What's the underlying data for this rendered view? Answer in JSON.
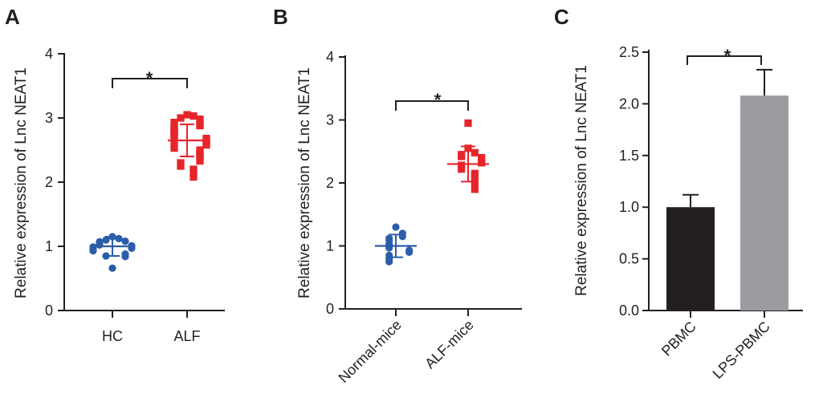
{
  "colors": {
    "blue": "#2a5daa",
    "red": "#e8242b",
    "dark_bar": "#231f20",
    "gray_bar": "#9a9ca1",
    "ink": "#231f20"
  },
  "chart_data": [
    {
      "panel": "A",
      "type": "scatter",
      "ylabel": "Relative expression of Lnc NEAT1",
      "categories": [
        "HC",
        "ALF"
      ],
      "ylim": [
        0,
        4
      ],
      "yticks": [
        "0",
        "1",
        "2",
        "3",
        "4"
      ],
      "significance": "*",
      "series": [
        {
          "name": "HC",
          "color": "blue",
          "marker": "circle",
          "mean": 1.0,
          "sd": 0.15,
          "values": [
            1.15,
            1.12,
            1.1,
            1.08,
            1.07,
            1.04,
            1.02,
            1.01,
            1.0,
            0.99,
            0.97,
            0.95,
            0.93,
            0.88,
            0.85,
            0.84,
            0.66
          ]
        },
        {
          "name": "ALF",
          "color": "red",
          "marker": "square",
          "mean": 2.65,
          "sd": 0.25,
          "values": [
            3.05,
            3.03,
            3.0,
            2.98,
            2.95,
            2.93,
            2.9,
            2.88,
            2.86,
            2.85,
            2.83,
            2.8,
            2.78,
            2.76,
            2.75,
            2.72,
            2.7,
            2.68,
            2.66,
            2.65,
            2.64,
            2.62,
            2.6,
            2.58,
            2.55,
            2.53,
            2.5,
            2.48,
            2.45,
            2.42,
            2.4,
            2.37,
            2.33,
            2.3,
            2.25,
            2.2,
            2.15,
            2.08
          ]
        }
      ]
    },
    {
      "panel": "B",
      "type": "scatter",
      "ylabel": "Relative expression of Lnc NEAT1",
      "categories": [
        "Normal-mice",
        "ALF-mice"
      ],
      "ylim": [
        0,
        4
      ],
      "yticks": [
        "0",
        "1",
        "2",
        "3",
        "4"
      ],
      "significance": "*",
      "series": [
        {
          "name": "Normal-mice",
          "color": "blue",
          "marker": "circle",
          "mean": 1.0,
          "sd": 0.18,
          "values": [
            1.3,
            1.2,
            1.15,
            1.12,
            1.08,
            1.02,
            1.0,
            0.97,
            0.93,
            0.9,
            0.85,
            0.8,
            0.75
          ]
        },
        {
          "name": "ALF-mice",
          "color": "red",
          "marker": "square",
          "mean": 2.3,
          "sd": 0.28,
          "values": [
            2.95,
            2.55,
            2.48,
            2.45,
            2.42,
            2.4,
            2.35,
            2.32,
            2.28,
            2.22,
            2.15,
            2.1,
            2.0,
            1.9
          ]
        }
      ]
    },
    {
      "panel": "C",
      "type": "bar",
      "ylabel": "Relative expression of Lnc NEAT1",
      "categories": [
        "PBMC",
        "LPS-PBMC"
      ],
      "ylim": [
        0,
        2.5
      ],
      "yticks": [
        "0.0",
        "0.5",
        "1.0",
        "1.5",
        "2.0",
        "2.5"
      ],
      "significance": "*",
      "series": [
        {
          "name": "PBMC",
          "color": "dark_bar",
          "value": 1.0,
          "error": 0.12
        },
        {
          "name": "LPS-PBMC",
          "color": "gray_bar",
          "value": 2.08,
          "error": 0.25
        }
      ]
    }
  ]
}
